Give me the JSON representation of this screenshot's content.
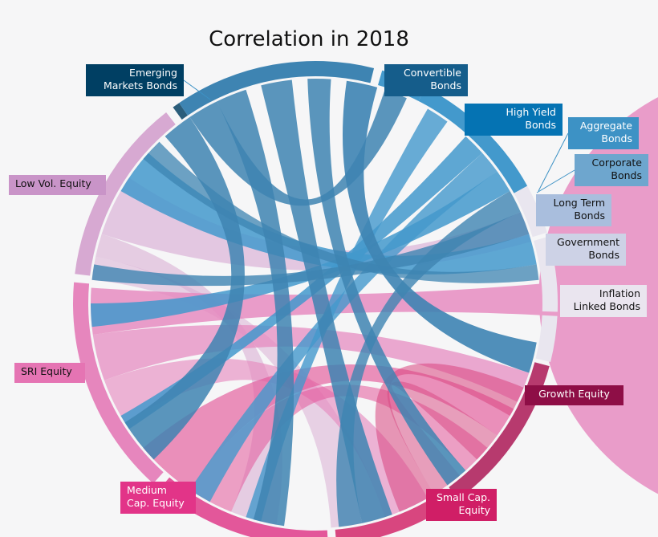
{
  "title": "Correlation in 2018",
  "groups": [
    {
      "id": "emb",
      "lines": [
        "Emerging",
        "Markets Bonds"
      ],
      "color": "#003f63",
      "text_color": "#ffffff"
    },
    {
      "id": "cvb",
      "lines": [
        "Convertible",
        "Bonds"
      ],
      "color": "#155d8b",
      "text_color": "#ffffff"
    },
    {
      "id": "hyb",
      "lines": [
        "High Yield",
        "Bonds"
      ],
      "color": "#0573b3",
      "text_color": "#ffffff"
    },
    {
      "id": "agb",
      "lines": [
        "Aggregate",
        "Bonds"
      ],
      "color": "#3d92c5",
      "text_color": "#ffffff"
    },
    {
      "id": "cob",
      "lines": [
        "Corporate",
        "Bonds"
      ],
      "color": "#6ea6ce",
      "text_color": "#111111"
    },
    {
      "id": "ltb",
      "lines": [
        "Long Term",
        "Bonds"
      ],
      "color": "#a9bedd",
      "text_color": "#111111"
    },
    {
      "id": "gvb",
      "lines": [
        "Government",
        "Bonds"
      ],
      "color": "#cdd2e6",
      "text_color": "#111111"
    },
    {
      "id": "ilb",
      "lines": [
        "Inflation",
        "Linked Bonds"
      ],
      "color": "#eae5ef",
      "text_color": "#111111"
    },
    {
      "id": "gre",
      "lines": [
        "Growth Equity"
      ],
      "color": "#8e0e46",
      "text_color": "#ffffff"
    },
    {
      "id": "sce",
      "lines": [
        "Small Cap.",
        "Equity"
      ],
      "color": "#d01e66",
      "text_color": "#ffffff"
    },
    {
      "id": "mce",
      "lines": [
        "Medium",
        "Cap. Equity"
      ],
      "color": "#e23488",
      "text_color": "#ffffff"
    },
    {
      "id": "sri",
      "lines": [
        "SRI Equity"
      ],
      "color": "#e574b3",
      "text_color": "#111111"
    },
    {
      "id": "lve",
      "lines": [
        "Low Vol. Equity"
      ],
      "color": "#c994c8",
      "text_color": "#111111"
    }
  ],
  "arc_colors": {
    "blue": "#3e84b2",
    "light_blue": "#4399cc",
    "pale": "#e9e6ef",
    "growth": "#b73a6e",
    "small_cap": "#d8467f",
    "medium_cap": "#e3579a",
    "sri": "#e686bd",
    "low_vol": "#d7a9d2"
  }
}
